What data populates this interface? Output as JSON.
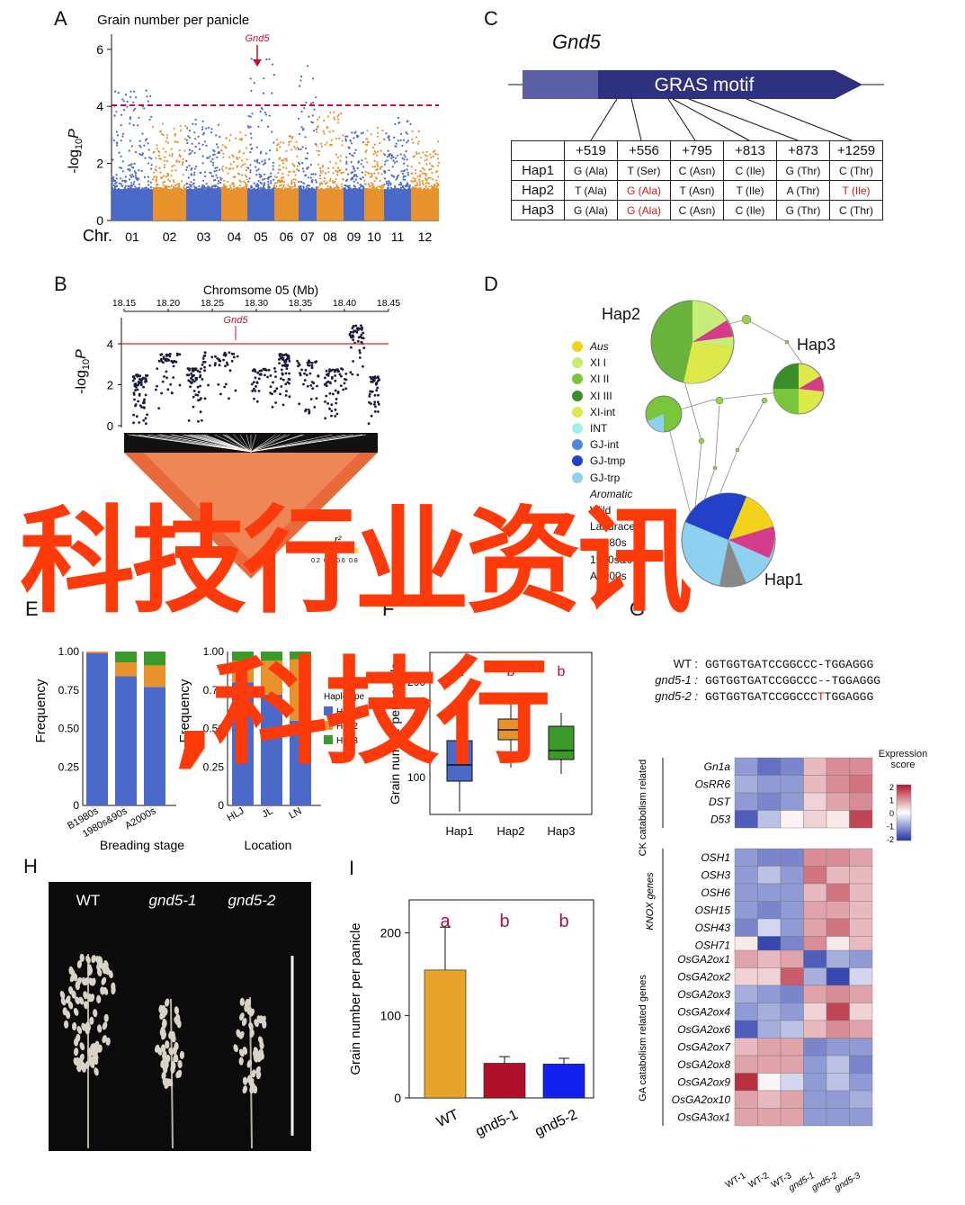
{
  "panel_labels": {
    "A": "A",
    "B": "B",
    "C": "C",
    "D": "D",
    "E": "E",
    "F": "F",
    "G": "G",
    "H": "H",
    "I": "I"
  },
  "panelA": {
    "title": "Grain number per panicle",
    "gene_marker": "Gnd5",
    "ylabel_pre": "-log",
    "ylabel_sub": "10",
    "ylabel_post": "P",
    "yticks": [
      "0",
      "2",
      "4",
      "6"
    ],
    "xprefix": "Chr.",
    "chromosomes": [
      "01",
      "02",
      "03",
      "04",
      "05",
      "06",
      "07",
      "08",
      "09",
      "10",
      "11",
      "12"
    ],
    "colors": {
      "odd": "#4a69c9",
      "even": "#e8922e",
      "threshold": "#c8102e"
    }
  },
  "panelB": {
    "title": "Chromsome 05 (Mb)",
    "gene_marker": "Gnd5",
    "ylabel_pre": "-log",
    "ylabel_sub": "10",
    "ylabel_post": "P",
    "xticks": [
      "18.15",
      "18.20",
      "18.25",
      "18.30",
      "18.35",
      "18.40",
      "18.45"
    ],
    "yticks": [
      "0",
      "2",
      "4"
    ],
    "r2_label": "r²",
    "r2_ticks": [
      "0.2",
      "0.4",
      "0.6",
      "0.8"
    ]
  },
  "panelC": {
    "gene": "Gnd5",
    "motif": "GRAS  motif",
    "headers": [
      "+519",
      "+556",
      "+795",
      "+813",
      "+873",
      "+1259"
    ],
    "rows": [
      {
        "name": "Hap1",
        "cells": [
          "G (Ala)",
          "T (Ser)",
          "C (Asn)",
          "C (Ile)",
          "G (Thr)",
          "C (Thr)"
        ]
      },
      {
        "name": "Hap2",
        "cells": [
          "T (Ala)",
          "G (Ala)",
          "T (Asn)",
          "T (Ile)",
          "A (Thr)",
          "T (Ile)"
        ]
      },
      {
        "name": "Hap3",
        "cells": [
          "G (Ala)",
          "G (Ala)",
          "C (Asn)",
          "C (Ile)",
          "G (Thr)",
          "C (Thr)"
        ]
      }
    ],
    "red_cells": [
      [
        1,
        1
      ],
      [
        1,
        5
      ],
      [
        2,
        1
      ]
    ]
  },
  "panelD": {
    "hap_labels": [
      "Hap2",
      "Hap3",
      "Hap1"
    ],
    "legend": [
      {
        "label": "Aus",
        "color": "#f2d21b",
        "italic": true
      },
      {
        "label": "XI I",
        "color": "#c7ec78",
        "italic": false
      },
      {
        "label": "XI II",
        "color": "#79c63a",
        "italic": false
      },
      {
        "label": "XI III",
        "color": "#3b8f2a",
        "italic": false
      },
      {
        "label": "XI-int",
        "color": "#dde84a",
        "italic": false
      },
      {
        "label": "INT",
        "color": "#9ef0e8",
        "italic": false
      },
      {
        "label": "GJ-int",
        "color": "#4f88d8",
        "italic": false
      },
      {
        "label": "GJ-tmp",
        "color": "#2340c8",
        "italic": false
      },
      {
        "label": "GJ-trp",
        "color": "#8ed0f0",
        "italic": false
      },
      {
        "label": "Aromatic",
        "color": "#ffffff",
        "italic": true
      },
      {
        "label": "Wild",
        "color": "#ffffff",
        "italic": false
      },
      {
        "label": "Landrace",
        "color": "#ffffff",
        "italic": false
      },
      {
        "label": "B1980s",
        "color": "#ffffff",
        "italic": false
      },
      {
        "label": "1980s&90s",
        "color": "#ffffff",
        "italic": false
      },
      {
        "label": "A2000s",
        "color": "#ffffff",
        "italic": false
      }
    ]
  },
  "panelE": {
    "ylabel": "Frequency",
    "yticks": [
      "0",
      "0.25",
      "0.50",
      "0.75",
      "1.00"
    ],
    "left_xlabel": "Breading stage",
    "left_groups": [
      "B1980s",
      "1980s&90s",
      "A2000s"
    ],
    "right_xlabel": "Location",
    "right_groups": [
      "HLJ",
      "JL",
      "LN"
    ],
    "legend_title": "Haplotype",
    "legend": [
      "Hap1",
      "Hap2",
      "Hap3"
    ]
  },
  "panelF": {
    "ylabel": "Grain number per panicle",
    "yticks": [
      "100",
      "200"
    ],
    "groups": [
      "Hap1",
      "Hap2",
      "Hap3"
    ],
    "letters": [
      "a",
      "b",
      "b"
    ]
  },
  "panelG": {
    "rows": [
      {
        "name": "WT :",
        "seq": "GGTGGTGATCCGGCCC",
        "mid": "-",
        "tail": "TGGAGGG"
      },
      {
        "name": "gnd5-1 :",
        "seq": "GGTGGTGATCCGGCCC",
        "mid": "-",
        "tail": "-TGGAGGG"
      },
      {
        "name": "gnd5-2 :",
        "seq": "GGTGGTGATCCGGCCC",
        "mid": "T",
        "tail": "TGGAGGG"
      }
    ],
    "scale_title": "Expression score",
    "scale_ticks": [
      "2",
      "1",
      "0",
      "-1",
      "-2"
    ],
    "group_labels": [
      "CK catabolism related genes",
      "KNOX genes",
      "GA catabolism related genes"
    ],
    "genes_ck": [
      "Gn1a",
      "OsRR6",
      "DST",
      "D53"
    ],
    "genes_knox": [
      "OSH1",
      "OSH3",
      "OSH6",
      "OSH15",
      "OSH43",
      "OSH71"
    ],
    "genes_ga": [
      "OsGA2ox1",
      "OsGA2ox2",
      "OsGA2ox3",
      "OsGA2ox4",
      "OsGA2ox6",
      "OsGA2ox7",
      "OsGA2ox8",
      "OsGA2ox9",
      "OsGA2ox10",
      "OsGA3ox1"
    ],
    "columns": [
      "WT-1",
      "WT-2",
      "WT-3",
      "gnd5-1",
      "gnd5-2",
      "gnd5-3"
    ]
  },
  "panelH": {
    "labels": [
      "WT",
      "gnd5-1",
      "gnd5-2"
    ]
  },
  "panelI": {
    "ylabel": "Grain number per panicle",
    "yticks": [
      "0",
      "100",
      "200"
    ],
    "categories": [
      "WT",
      "gnd5-1",
      "gnd5-2"
    ],
    "letters": [
      "a",
      "b",
      "b"
    ],
    "bar_colors": [
      "#e8a32c",
      "#b0102a",
      "#1420f0"
    ]
  },
  "chart_data": [
    {
      "type": "bar",
      "title": "",
      "ylabel": "Grain number per panicle",
      "categories": [
        "WT",
        "gnd5-1",
        "gnd5-2"
      ],
      "values": [
        155,
        42,
        41
      ],
      "errors": [
        52,
        8,
        7
      ],
      "ylim": [
        0,
        240
      ]
    },
    {
      "type": "bar",
      "stacked": true,
      "ylabel": "Frequency",
      "xlabel": "Breading stage",
      "categories": [
        "B1980s",
        "1980s&90s",
        "A2000s"
      ],
      "series": [
        {
          "name": "Hap1",
          "values": [
            0.99,
            0.84,
            0.77
          ]
        },
        {
          "name": "Hap2",
          "values": [
            0.01,
            0.09,
            0.14
          ]
        },
        {
          "name": "Hap3",
          "values": [
            0.0,
            0.07,
            0.09
          ]
        }
      ],
      "ylim": [
        0,
        1
      ]
    },
    {
      "type": "bar",
      "stacked": true,
      "ylabel": "Frequency",
      "xlabel": "Location",
      "categories": [
        "HLJ",
        "JL",
        "LN"
      ],
      "series": [
        {
          "name": "Hap1",
          "values": [
            0.8,
            0.72,
            0.55
          ]
        },
        {
          "name": "Hap2",
          "values": [
            0.14,
            0.22,
            0.4
          ]
        },
        {
          "name": "Hap3",
          "values": [
            0.06,
            0.06,
            0.05
          ]
        }
      ],
      "ylim": [
        0,
        1
      ]
    }
  ],
  "watermark": {
    "line1": "科技行业资讯",
    "line2": ",科技行"
  }
}
